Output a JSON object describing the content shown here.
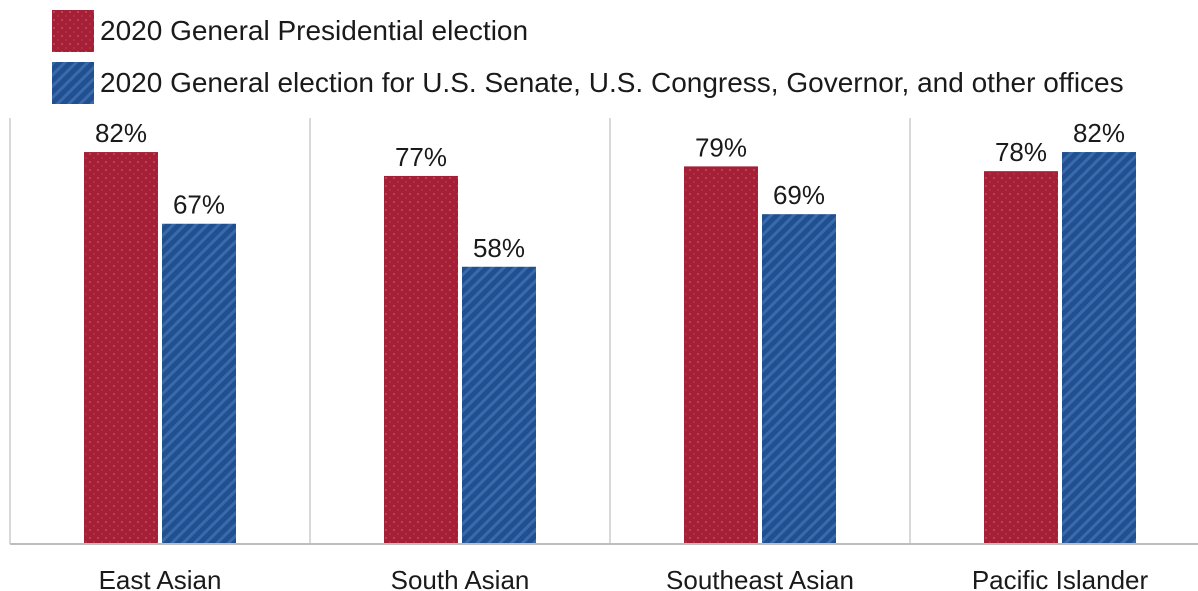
{
  "chart_data": {
    "type": "bar",
    "categories": [
      "East Asian",
      "South Asian",
      "Southeast Asian",
      "Pacific Islander"
    ],
    "series": [
      {
        "name": "2020 General Presidential election",
        "values": [
          82,
          77,
          79,
          78
        ],
        "color": "#a51f36",
        "pattern": "dots"
      },
      {
        "name": "2020 General election for U.S. Senate, U.S. Congress, Governor, and other offices",
        "values": [
          67,
          58,
          69,
          82
        ],
        "color": "#20508f",
        "pattern": "diagonal-stripes"
      }
    ],
    "value_suffix": "%",
    "ylim": [
      0,
      100
    ],
    "grid": false,
    "legend_position": "top-left",
    "title": "",
    "xlabel": "",
    "ylabel": ""
  }
}
